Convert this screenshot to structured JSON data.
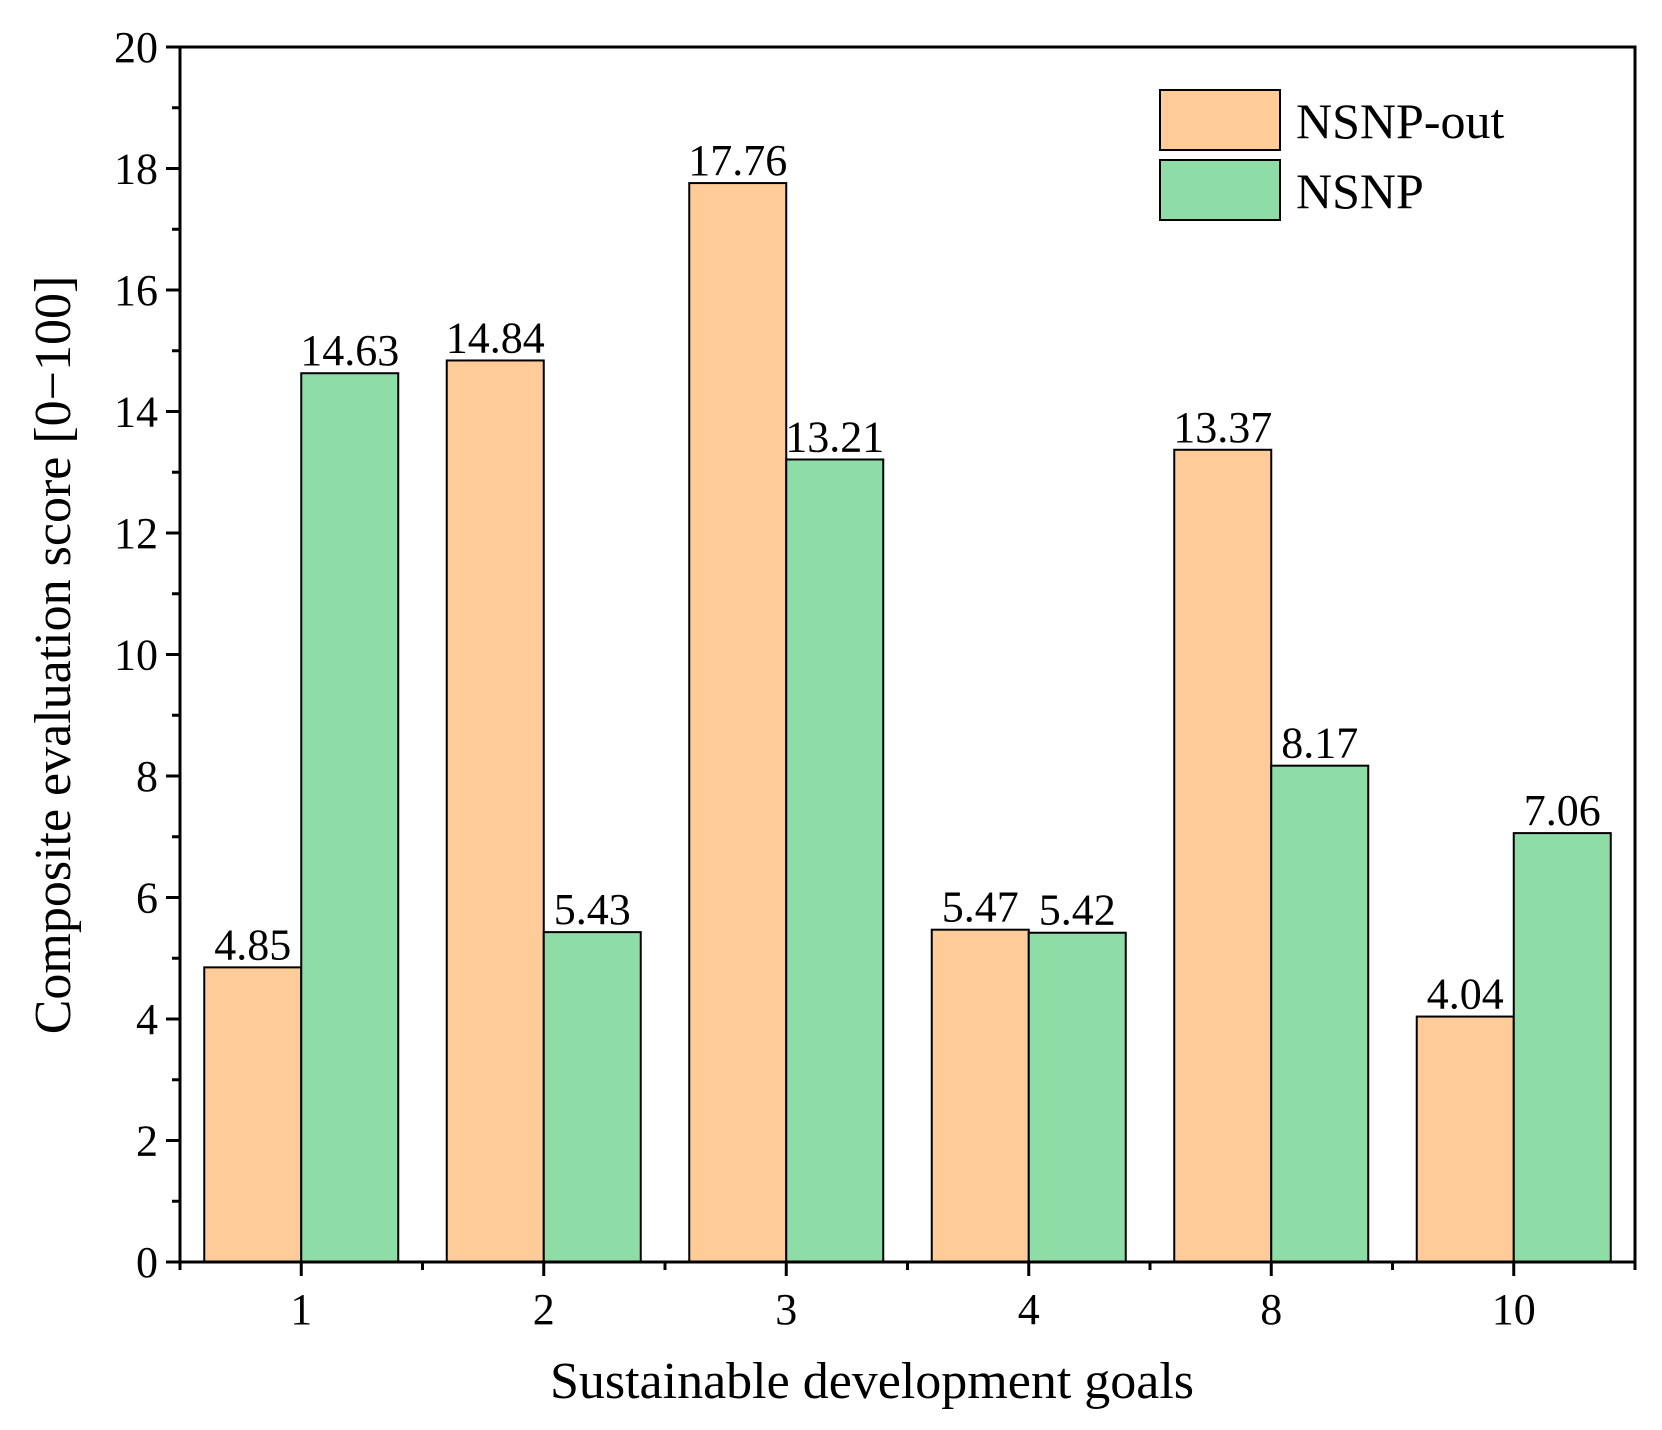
{
  "chart_data": {
    "type": "bar",
    "title": "",
    "xlabel": "Sustainable development goals",
    "ylabel": "Composite evaluation score [0−100]",
    "categories": [
      "1",
      "2",
      "3",
      "4",
      "8",
      "10"
    ],
    "series": [
      {
        "name": "NSNP-out",
        "color": "#FFCC99",
        "values": [
          4.85,
          14.84,
          17.76,
          5.47,
          13.37,
          4.04
        ]
      },
      {
        "name": "NSNP",
        "color": "#8FDDA6",
        "values": [
          14.63,
          5.43,
          13.21,
          5.42,
          8.17,
          7.06
        ]
      }
    ],
    "data_labels": [
      [
        "4.85",
        "14.84",
        "17.76",
        "5.47",
        "13.37",
        "4.04"
      ],
      [
        "14.63",
        "5.43",
        "13.21",
        "5.42",
        "8.17",
        "7.06"
      ]
    ],
    "ylim": [
      0,
      20
    ],
    "yticks": [
      0,
      2,
      4,
      6,
      8,
      10,
      12,
      14,
      16,
      18,
      20
    ],
    "ytick_labels": [
      "0",
      "2",
      "4",
      "6",
      "8",
      "10",
      "12",
      "14",
      "16",
      "18",
      "20"
    ],
    "grid": false,
    "legend_position": "top-right"
  }
}
